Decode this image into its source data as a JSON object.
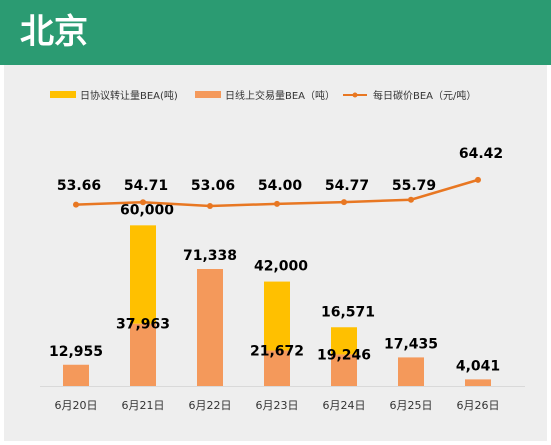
{
  "header": {
    "title": "北京"
  },
  "chart_data": {
    "type": "bar",
    "categories": [
      "6月20日",
      "6月21日",
      "6月22日",
      "6月23日",
      "6月24日",
      "6月25日",
      "6月26日"
    ],
    "series": [
      {
        "name": "日线上交易量BEA（吨）",
        "kind": "bar",
        "stack": "a",
        "color": "#f4995b",
        "values": [
          12955,
          37963,
          71338,
          21672,
          19246,
          17435,
          4041
        ],
        "labels": [
          "12,955",
          "37,963",
          "71,338",
          "21,672",
          "19,246",
          "17,435",
          "4,041"
        ]
      },
      {
        "name": "日协议转让量BEA(吨)",
        "kind": "bar",
        "stack": "a",
        "color": "#ffc000",
        "values": [
          0,
          60000,
          0,
          42000,
          16571,
          0,
          0
        ],
        "labels": [
          "",
          "60,000",
          "",
          "42,000",
          "16,571",
          "",
          ""
        ]
      },
      {
        "name": "每日碳价BEA（元/吨）",
        "kind": "line",
        "color": "#e87722",
        "values": [
          53.66,
          54.71,
          53.06,
          54.0,
          54.77,
          55.79,
          64.42
        ],
        "labels": [
          "53.66",
          "54.71",
          "53.06",
          "54.00",
          "54.77",
          "55.79",
          "64.42"
        ]
      }
    ],
    "legend": "top",
    "grid": false
  }
}
